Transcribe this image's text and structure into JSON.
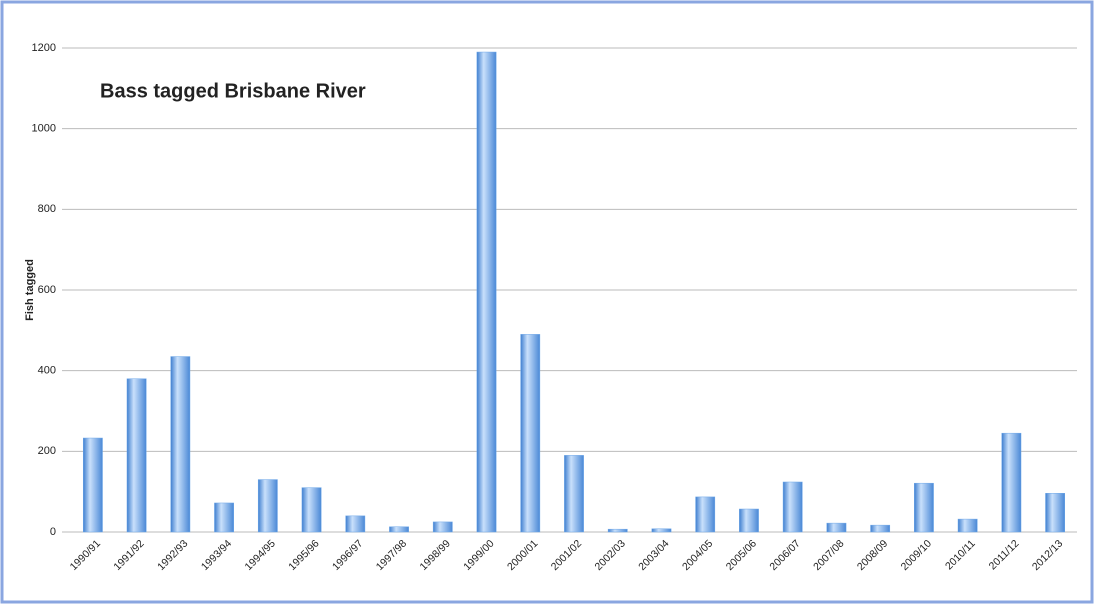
{
  "chart_data": {
    "type": "bar",
    "title": "Bass tagged Brisbane River",
    "y_label": "Fish tagged",
    "categories": [
      "1990/91",
      "1991/92",
      "1992/93",
      "1993/94",
      "1994/95",
      "1995/96",
      "1996/97",
      "1997/98",
      "1998/99",
      "1999/00",
      "2000/01",
      "2001/02",
      "2002/03",
      "2003/04",
      "2004/05",
      "2005/06",
      "2006/07",
      "2007/08",
      "2008/09",
      "2009/10",
      "2010/11",
      "2011/12",
      "2012/13"
    ],
    "values": [
      233,
      380,
      435,
      72,
      130,
      110,
      40,
      13,
      25,
      1190,
      490,
      190,
      7,
      8,
      87,
      57,
      124,
      22,
      17,
      121,
      32,
      245,
      96
    ],
    "color": "#6fa8e8",
    "ylim": [
      0,
      1200
    ],
    "yticks": [
      0,
      200,
      400,
      600,
      800,
      1000,
      1200
    ],
    "grid": true
  }
}
